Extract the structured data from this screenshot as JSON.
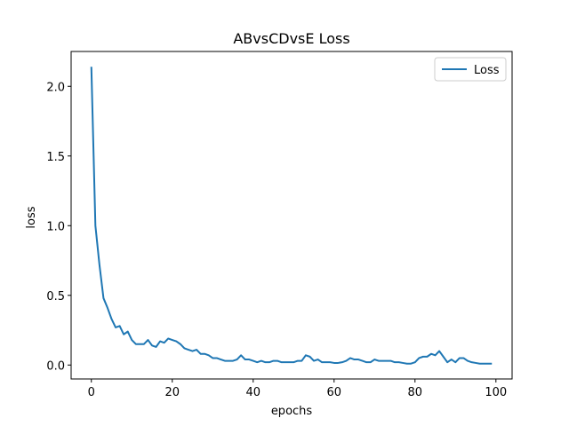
{
  "chart_data": {
    "type": "line",
    "title": "ABvsCDvsE Loss",
    "xlabel": "epochs",
    "ylabel": "loss",
    "xlim": [
      -5,
      104
    ],
    "ylim": [
      -0.1,
      2.25
    ],
    "xticks": [
      0,
      20,
      40,
      60,
      80,
      100
    ],
    "yticks": [
      0.0,
      0.5,
      1.0,
      1.5,
      2.0
    ],
    "xtick_labels": [
      "0",
      "20",
      "40",
      "60",
      "80",
      "100"
    ],
    "ytick_labels": [
      "0.0",
      "0.5",
      "1.0",
      "1.5",
      "2.0"
    ],
    "grid": false,
    "legend_position": "top-right",
    "series": [
      {
        "name": "Loss",
        "color": "#1f77b4",
        "x": [
          0,
          1,
          2,
          3,
          4,
          5,
          6,
          7,
          8,
          9,
          10,
          11,
          12,
          13,
          14,
          15,
          16,
          17,
          18,
          19,
          20,
          21,
          22,
          23,
          24,
          25,
          26,
          27,
          28,
          29,
          30,
          31,
          32,
          33,
          34,
          35,
          36,
          37,
          38,
          39,
          40,
          41,
          42,
          43,
          44,
          45,
          46,
          47,
          48,
          49,
          50,
          51,
          52,
          53,
          54,
          55,
          56,
          57,
          58,
          59,
          60,
          61,
          62,
          63,
          64,
          65,
          66,
          67,
          68,
          69,
          70,
          71,
          72,
          73,
          74,
          75,
          76,
          77,
          78,
          79,
          80,
          81,
          82,
          83,
          84,
          85,
          86,
          87,
          88,
          89,
          90,
          91,
          92,
          93,
          94,
          95,
          96,
          97,
          98,
          99
        ],
        "y": [
          2.14,
          1.0,
          0.72,
          0.48,
          0.41,
          0.33,
          0.27,
          0.28,
          0.22,
          0.24,
          0.18,
          0.15,
          0.15,
          0.15,
          0.18,
          0.14,
          0.13,
          0.17,
          0.16,
          0.19,
          0.18,
          0.17,
          0.15,
          0.12,
          0.11,
          0.1,
          0.11,
          0.08,
          0.08,
          0.07,
          0.05,
          0.05,
          0.04,
          0.03,
          0.03,
          0.03,
          0.04,
          0.07,
          0.04,
          0.04,
          0.03,
          0.02,
          0.03,
          0.02,
          0.02,
          0.03,
          0.03,
          0.02,
          0.02,
          0.02,
          0.02,
          0.03,
          0.03,
          0.07,
          0.06,
          0.03,
          0.04,
          0.02,
          0.02,
          0.02,
          0.015,
          0.015,
          0.02,
          0.03,
          0.05,
          0.04,
          0.04,
          0.03,
          0.02,
          0.02,
          0.04,
          0.03,
          0.03,
          0.03,
          0.03,
          0.02,
          0.02,
          0.015,
          0.01,
          0.01,
          0.02,
          0.05,
          0.06,
          0.06,
          0.08,
          0.07,
          0.1,
          0.06,
          0.02,
          0.04,
          0.02,
          0.05,
          0.05,
          0.03,
          0.02,
          0.015,
          0.01,
          0.01,
          0.01,
          0.01
        ]
      }
    ]
  }
}
